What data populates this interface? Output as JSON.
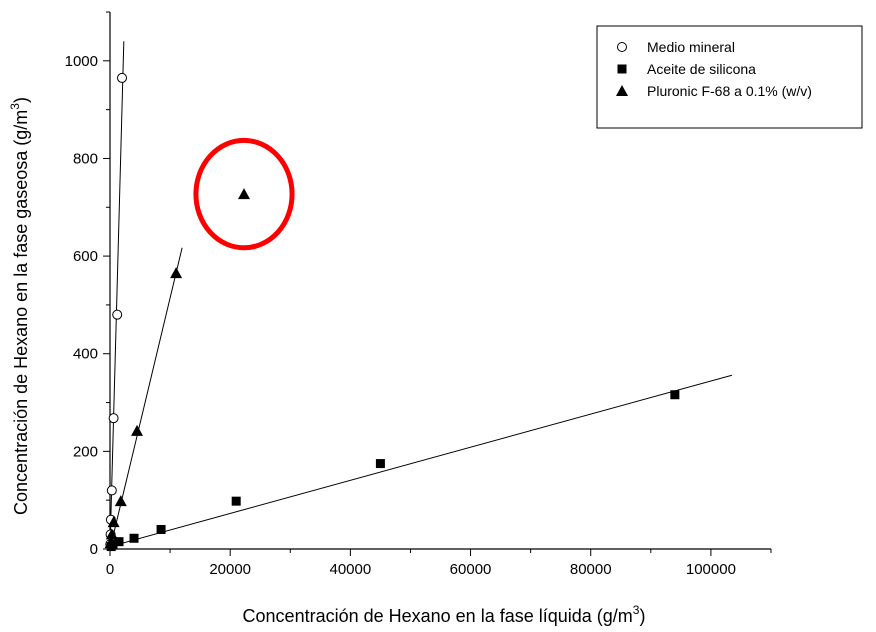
{
  "chart_data": {
    "type": "scatter",
    "xlabel": "Concentración de Hexano en la fase líquida (g/m",
    "xlabel_sup": "3",
    "xlabel_end": ")",
    "ylabel": "Concentración de Hexano en la fase gaseosa (g/m",
    "ylabel_sup": "3",
    "ylabel_end": ")",
    "xlim": [
      0,
      110000
    ],
    "ylim": [
      0,
      1100
    ],
    "x_ticks": [
      0,
      20000,
      40000,
      60000,
      80000,
      100000
    ],
    "y_ticks": [
      0,
      200,
      400,
      600,
      800,
      1000
    ],
    "grid": false,
    "legend_position": "top-right",
    "series": [
      {
        "name": "Medio mineral",
        "marker": "open-circle",
        "points": [
          [
            50,
            10
          ],
          [
            100,
            30
          ],
          [
            150,
            60
          ],
          [
            300,
            120
          ],
          [
            600,
            268
          ],
          [
            1200,
            480
          ],
          [
            2000,
            965
          ]
        ],
        "fit": [
          [
            0,
            0
          ],
          [
            2300,
            1040
          ]
        ]
      },
      {
        "name": "Aceite de silicona",
        "marker": "filled-square",
        "points": [
          [
            200,
            5
          ],
          [
            500,
            10
          ],
          [
            1500,
            15
          ],
          [
            4000,
            22
          ],
          [
            8500,
            40
          ],
          [
            21000,
            98
          ],
          [
            45000,
            175
          ],
          [
            94000,
            316
          ]
        ],
        "fit": [
          [
            0,
            5
          ],
          [
            103500,
            356
          ]
        ]
      },
      {
        "name": "Pluronic F-68 a 0.1% (w/v)",
        "marker": "filled-triangle",
        "points": [
          [
            100,
            12
          ],
          [
            300,
            30
          ],
          [
            600,
            55
          ],
          [
            1800,
            98
          ],
          [
            4500,
            242
          ],
          [
            11000,
            565
          ],
          [
            22300,
            727
          ]
        ],
        "fit": [
          [
            0,
            0
          ],
          [
            12000,
            617
          ]
        ]
      }
    ],
    "annotations": [
      {
        "type": "ellipse",
        "color": "#ff0000",
        "cx": 22300,
        "cy": 727,
        "rx": 8000,
        "ry": 110
      }
    ],
    "colors": {
      "axis": "#000000",
      "marker": "#000000",
      "highlight": "#ff0000"
    }
  }
}
